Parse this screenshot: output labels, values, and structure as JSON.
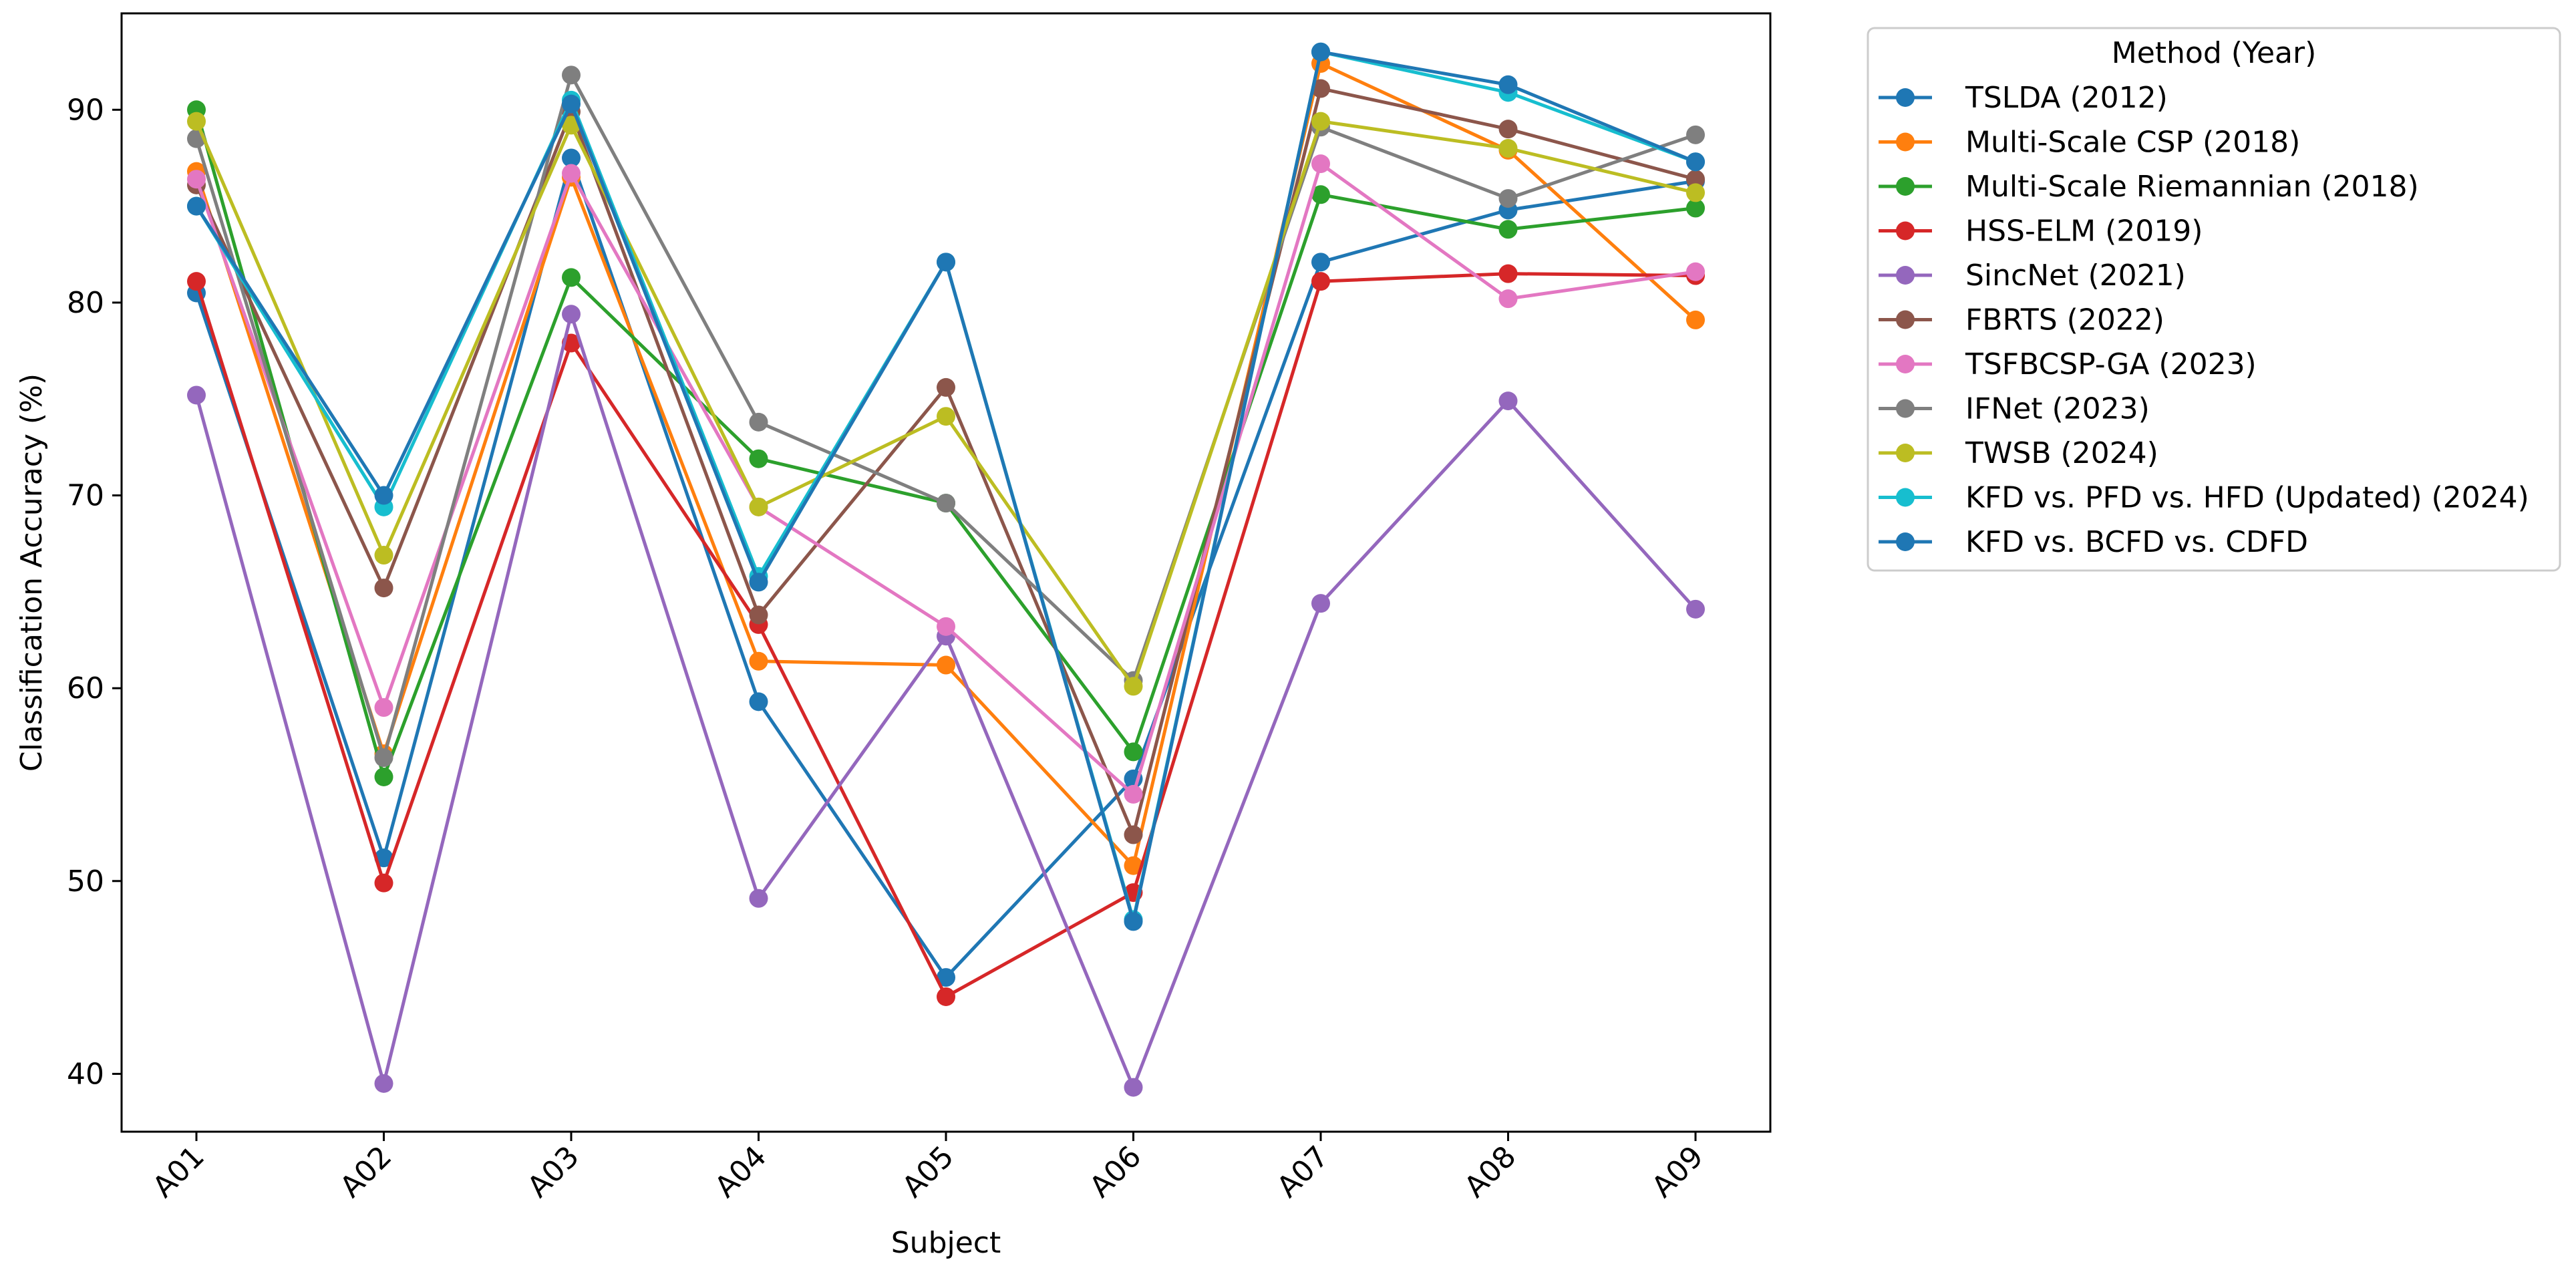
{
  "chart_data": {
    "type": "line",
    "title": "",
    "xlabel": "Subject",
    "ylabel": "Classification Accuracy (%)",
    "categories": [
      "A01",
      "A02",
      "A03",
      "A04",
      "A05",
      "A06",
      "A07",
      "A08",
      "A09"
    ],
    "ylim": [
      37,
      95
    ],
    "yticks": [
      40,
      50,
      60,
      70,
      80,
      90
    ],
    "grid": false,
    "legend": {
      "title": "Method (Year)",
      "placement": "outside-right-top"
    },
    "series": [
      {
        "name": "TSLDA (2012)",
        "color": "#1f77b4",
        "values": [
          80.5,
          51.2,
          87.5,
          59.3,
          45.0,
          55.3,
          82.1,
          84.8,
          86.3
        ]
      },
      {
        "name": "Multi-Scale CSP (2018)",
        "color": "#ff7f0e",
        "values": [
          86.8,
          56.6,
          86.5,
          61.4,
          61.2,
          50.8,
          92.4,
          87.9,
          79.1
        ]
      },
      {
        "name": "Multi-Scale Riemannian (2018)",
        "color": "#2ca02c",
        "values": [
          90.0,
          55.4,
          81.3,
          71.9,
          69.6,
          56.7,
          85.6,
          83.8,
          84.9
        ]
      },
      {
        "name": "HSS-ELM (2019)",
        "color": "#d62728",
        "values": [
          81.1,
          49.9,
          77.9,
          63.3,
          44.0,
          49.4,
          81.1,
          81.5,
          81.4
        ]
      },
      {
        "name": "SincNet (2021)",
        "color": "#9467bd",
        "values": [
          75.2,
          39.5,
          79.4,
          49.1,
          62.7,
          39.3,
          64.4,
          74.9,
          64.1
        ]
      },
      {
        "name": "FBRTS (2022)",
        "color": "#8c564b",
        "values": [
          86.1,
          65.2,
          89.9,
          63.8,
          75.6,
          52.4,
          91.1,
          89.0,
          86.4
        ]
      },
      {
        "name": "TSFBCSP-GA (2023)",
        "color": "#e377c2",
        "values": [
          86.4,
          59.0,
          86.7,
          69.4,
          63.2,
          54.5,
          87.2,
          80.2,
          81.6
        ]
      },
      {
        "name": "IFNet (2023)",
        "color": "#7f7f7f",
        "values": [
          88.5,
          56.4,
          91.8,
          73.8,
          69.6,
          60.4,
          89.1,
          85.4,
          88.7
        ]
      },
      {
        "name": "TWSB (2024)",
        "color": "#bcbd22",
        "values": [
          89.4,
          66.9,
          89.2,
          69.4,
          74.1,
          60.1,
          89.4,
          88.0,
          85.7
        ]
      },
      {
        "name": "KFD vs. PFD vs. HFD (Updated) (2024)",
        "color": "#17becf",
        "values": [
          85.0,
          69.4,
          90.5,
          65.8,
          82.1,
          48.0,
          93.0,
          90.9,
          87.3
        ]
      },
      {
        "name": "KFD vs. BCFD vs. CDFD",
        "color": "#1f77b4",
        "values": [
          85.0,
          70.0,
          90.3,
          65.5,
          82.1,
          47.9,
          93.0,
          91.3,
          87.3
        ]
      }
    ]
  }
}
